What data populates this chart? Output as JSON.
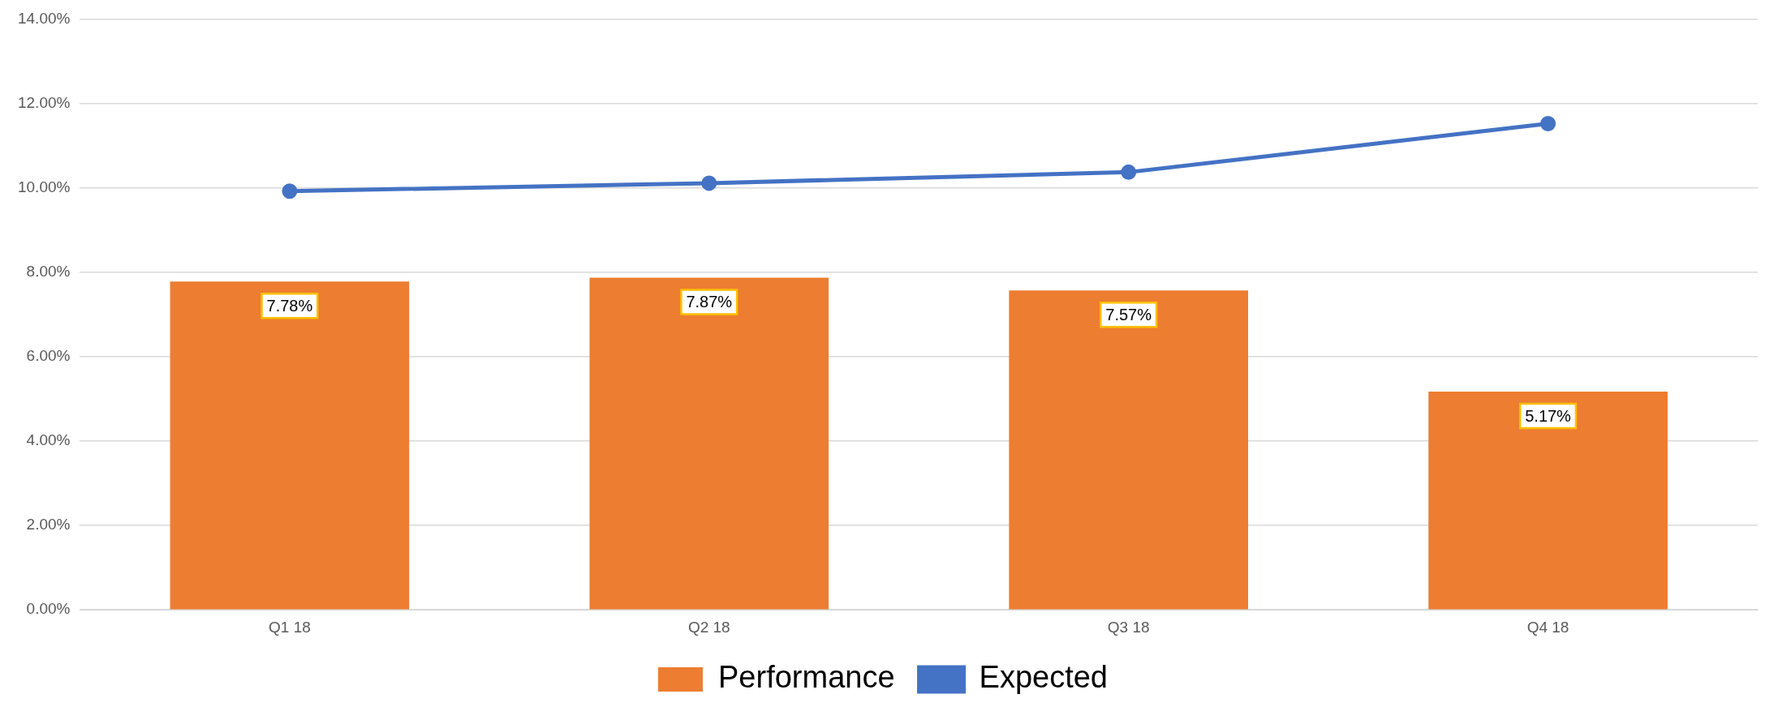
{
  "chart_data": {
    "type": "bar",
    "categories": [
      "Q1 18",
      "Q2 18",
      "Q3 18",
      "Q4 18"
    ],
    "series": [
      {
        "name": "Performance",
        "color": "#ed7d31",
        "values": [
          7.78,
          7.87,
          7.57,
          5.17
        ],
        "value_labels": [
          "7.78%",
          "7.87%",
          "7.57%",
          "5.17%"
        ]
      },
      {
        "name": "Expected",
        "type": "line",
        "color": "#4472c4",
        "values": [
          9.92,
          10.11,
          10.37,
          11.52
        ],
        "marker": "circle"
      }
    ],
    "ylim": [
      0,
      14
    ],
    "yticks": [
      {
        "value": 0,
        "label": "0.00%"
      },
      {
        "value": 2,
        "label": "2.00%"
      },
      {
        "value": 4,
        "label": "4.00%"
      },
      {
        "value": 6,
        "label": "6.00%"
      },
      {
        "value": 8,
        "label": "8.00%"
      },
      {
        "value": 10,
        "label": "10.00%"
      },
      {
        "value": 12,
        "label": "12.00%"
      },
      {
        "value": 14,
        "label": "14.00%"
      }
    ],
    "grid": "y",
    "legend": "bottom"
  }
}
